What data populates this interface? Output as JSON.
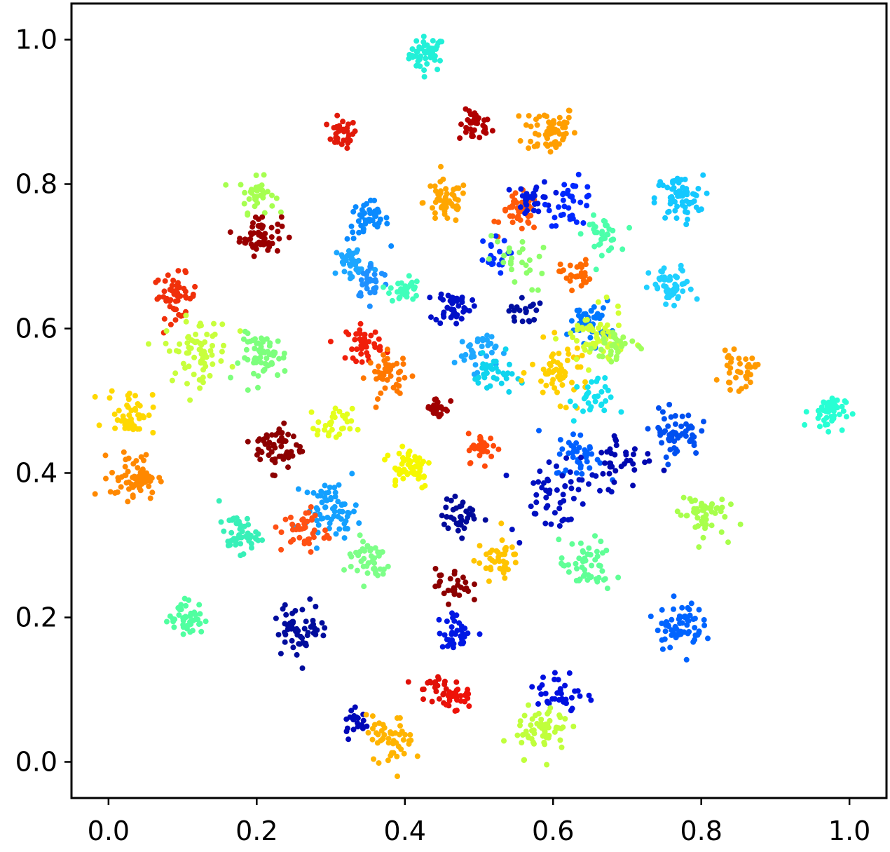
{
  "chart_data": {
    "type": "scatter",
    "title": "",
    "xlabel": "",
    "ylabel": "",
    "xlim": [
      -0.05,
      1.05
    ],
    "ylim": [
      -0.05,
      1.05
    ],
    "xticks": [
      "0.0",
      "0.2",
      "0.4",
      "0.6",
      "0.8",
      "1.0"
    ],
    "yticks": [
      "0.0",
      "0.2",
      "0.4",
      "0.6",
      "0.8",
      "1.0"
    ],
    "grid": false,
    "legend": "none",
    "colormap": "jet",
    "clusters": [
      {
        "x": 0.43,
        "y": 0.98,
        "color": "#22f0d8",
        "n": 45,
        "spread": 0.012
      },
      {
        "x": 0.315,
        "y": 0.87,
        "color": "#e11a0a",
        "n": 30,
        "spread": 0.01
      },
      {
        "x": 0.495,
        "y": 0.88,
        "color": "#b00000",
        "n": 35,
        "spread": 0.011
      },
      {
        "x": 0.595,
        "y": 0.875,
        "color": "#ff9e00",
        "n": 60,
        "spread": 0.018
      },
      {
        "x": 0.2,
        "y": 0.785,
        "color": "#a6ff50",
        "n": 35,
        "spread": 0.012
      },
      {
        "x": 0.205,
        "y": 0.73,
        "color": "#990000",
        "n": 55,
        "spread": 0.014
      },
      {
        "x": 0.09,
        "y": 0.645,
        "color": "#f0300a",
        "n": 50,
        "spread": 0.015
      },
      {
        "x": 0.35,
        "y": 0.75,
        "color": "#0a8aff",
        "n": 45,
        "spread": 0.014
      },
      {
        "x": 0.455,
        "y": 0.775,
        "color": "#ffa600",
        "n": 50,
        "spread": 0.015
      },
      {
        "x": 0.555,
        "y": 0.76,
        "color": "#ff5a0a",
        "n": 40,
        "spread": 0.013
      },
      {
        "x": 0.575,
        "y": 0.78,
        "color": "#0018e0",
        "n": 30,
        "spread": 0.012
      },
      {
        "x": 0.625,
        "y": 0.775,
        "color": "#0028ff",
        "n": 35,
        "spread": 0.016
      },
      {
        "x": 0.665,
        "y": 0.73,
        "color": "#4cffaa",
        "n": 35,
        "spread": 0.012
      },
      {
        "x": 0.77,
        "y": 0.78,
        "color": "#14c8ff",
        "n": 60,
        "spread": 0.016
      },
      {
        "x": 0.33,
        "y": 0.69,
        "color": "#1ca6ff",
        "n": 40,
        "spread": 0.014
      },
      {
        "x": 0.355,
        "y": 0.665,
        "color": "#1e90ff",
        "n": 30,
        "spread": 0.012
      },
      {
        "x": 0.4,
        "y": 0.655,
        "color": "#40ffbb",
        "n": 30,
        "spread": 0.01
      },
      {
        "x": 0.465,
        "y": 0.63,
        "color": "#0010c8",
        "n": 45,
        "spread": 0.012
      },
      {
        "x": 0.515,
        "y": 0.7,
        "color": "#0030ff",
        "n": 20,
        "spread": 0.012
      },
      {
        "x": 0.55,
        "y": 0.69,
        "color": "#8dff6a",
        "n": 25,
        "spread": 0.02
      },
      {
        "x": 0.56,
        "y": 0.625,
        "color": "#000fa0",
        "n": 20,
        "spread": 0.01
      },
      {
        "x": 0.63,
        "y": 0.675,
        "color": "#ff6a00",
        "n": 30,
        "spread": 0.01
      },
      {
        "x": 0.76,
        "y": 0.655,
        "color": "#20d0ff",
        "n": 50,
        "spread": 0.015
      },
      {
        "x": 0.65,
        "y": 0.61,
        "color": "#0078ff",
        "n": 45,
        "spread": 0.014
      },
      {
        "x": 0.12,
        "y": 0.57,
        "color": "#c8ff3c",
        "n": 70,
        "spread": 0.022
      },
      {
        "x": 0.21,
        "y": 0.56,
        "color": "#7dff7d",
        "n": 60,
        "spread": 0.016
      },
      {
        "x": 0.345,
        "y": 0.58,
        "color": "#f01e0a",
        "n": 40,
        "spread": 0.012
      },
      {
        "x": 0.38,
        "y": 0.535,
        "color": "#ff7800",
        "n": 45,
        "spread": 0.015
      },
      {
        "x": 0.495,
        "y": 0.57,
        "color": "#1ea8ff",
        "n": 35,
        "spread": 0.014
      },
      {
        "x": 0.52,
        "y": 0.535,
        "color": "#10d4ee",
        "n": 35,
        "spread": 0.014
      },
      {
        "x": 0.61,
        "y": 0.54,
        "color": "#ffd000",
        "n": 55,
        "spread": 0.02
      },
      {
        "x": 0.655,
        "y": 0.585,
        "color": "#d2ff32",
        "n": 55,
        "spread": 0.02
      },
      {
        "x": 0.685,
        "y": 0.575,
        "color": "#a0ff5a",
        "n": 30,
        "spread": 0.015
      },
      {
        "x": 0.85,
        "y": 0.54,
        "color": "#ff9a00",
        "n": 35,
        "spread": 0.012
      },
      {
        "x": 0.03,
        "y": 0.485,
        "color": "#ffd800",
        "n": 45,
        "spread": 0.016
      },
      {
        "x": 0.445,
        "y": 0.49,
        "color": "#a00000",
        "n": 25,
        "spread": 0.008
      },
      {
        "x": 0.97,
        "y": 0.485,
        "color": "#28ffd4",
        "n": 45,
        "spread": 0.012
      },
      {
        "x": 0.65,
        "y": 0.5,
        "color": "#14e0f0",
        "n": 30,
        "spread": 0.015
      },
      {
        "x": 0.305,
        "y": 0.465,
        "color": "#e4ff1c",
        "n": 30,
        "spread": 0.012
      },
      {
        "x": 0.035,
        "y": 0.395,
        "color": "#ff8800",
        "n": 65,
        "spread": 0.016
      },
      {
        "x": 0.23,
        "y": 0.435,
        "color": "#8c0000",
        "n": 60,
        "spread": 0.016
      },
      {
        "x": 0.405,
        "y": 0.41,
        "color": "#f6f800",
        "n": 55,
        "spread": 0.016
      },
      {
        "x": 0.505,
        "y": 0.435,
        "color": "#ff4a0a",
        "n": 30,
        "spread": 0.01
      },
      {
        "x": 0.635,
        "y": 0.425,
        "color": "#0060ff",
        "n": 40,
        "spread": 0.016
      },
      {
        "x": 0.695,
        "y": 0.42,
        "color": "#0008b0",
        "n": 35,
        "spread": 0.02
      },
      {
        "x": 0.765,
        "y": 0.455,
        "color": "#0050f0",
        "n": 55,
        "spread": 0.016
      },
      {
        "x": 0.6,
        "y": 0.375,
        "color": "#0010c0",
        "n": 55,
        "spread": 0.03
      },
      {
        "x": 0.3,
        "y": 0.35,
        "color": "#14a0ff",
        "n": 65,
        "spread": 0.018
      },
      {
        "x": 0.265,
        "y": 0.32,
        "color": "#ff5014",
        "n": 40,
        "spread": 0.016
      },
      {
        "x": 0.175,
        "y": 0.315,
        "color": "#38f0b8",
        "n": 45,
        "spread": 0.013
      },
      {
        "x": 0.475,
        "y": 0.34,
        "color": "#000a9a",
        "n": 35,
        "spread": 0.012
      },
      {
        "x": 0.8,
        "y": 0.345,
        "color": "#a8ff4c",
        "n": 50,
        "spread": 0.016
      },
      {
        "x": 0.35,
        "y": 0.28,
        "color": "#7dff88",
        "n": 45,
        "spread": 0.016
      },
      {
        "x": 0.525,
        "y": 0.28,
        "color": "#ffc400",
        "n": 40,
        "spread": 0.014
      },
      {
        "x": 0.645,
        "y": 0.27,
        "color": "#60ff96",
        "n": 50,
        "spread": 0.018
      },
      {
        "x": 0.465,
        "y": 0.245,
        "color": "#8c0000",
        "n": 30,
        "spread": 0.012
      },
      {
        "x": 0.105,
        "y": 0.2,
        "color": "#50ffa0",
        "n": 45,
        "spread": 0.012
      },
      {
        "x": 0.26,
        "y": 0.185,
        "color": "#000c9c",
        "n": 55,
        "spread": 0.018
      },
      {
        "x": 0.47,
        "y": 0.18,
        "color": "#0018e4",
        "n": 35,
        "spread": 0.012
      },
      {
        "x": 0.77,
        "y": 0.19,
        "color": "#0064ff",
        "n": 65,
        "spread": 0.016
      },
      {
        "x": 0.44,
        "y": 0.1,
        "color": "#e01008",
        "n": 25,
        "spread": 0.012
      },
      {
        "x": 0.47,
        "y": 0.09,
        "color": "#ee1208",
        "n": 25,
        "spread": 0.01
      },
      {
        "x": 0.61,
        "y": 0.095,
        "color": "#0010e0",
        "n": 35,
        "spread": 0.016
      },
      {
        "x": 0.335,
        "y": 0.055,
        "color": "#0008b8",
        "n": 20,
        "spread": 0.01
      },
      {
        "x": 0.38,
        "y": 0.03,
        "color": "#ffb400",
        "n": 50,
        "spread": 0.016
      },
      {
        "x": 0.585,
        "y": 0.045,
        "color": "#c0ff3c",
        "n": 60,
        "spread": 0.018
      }
    ]
  }
}
